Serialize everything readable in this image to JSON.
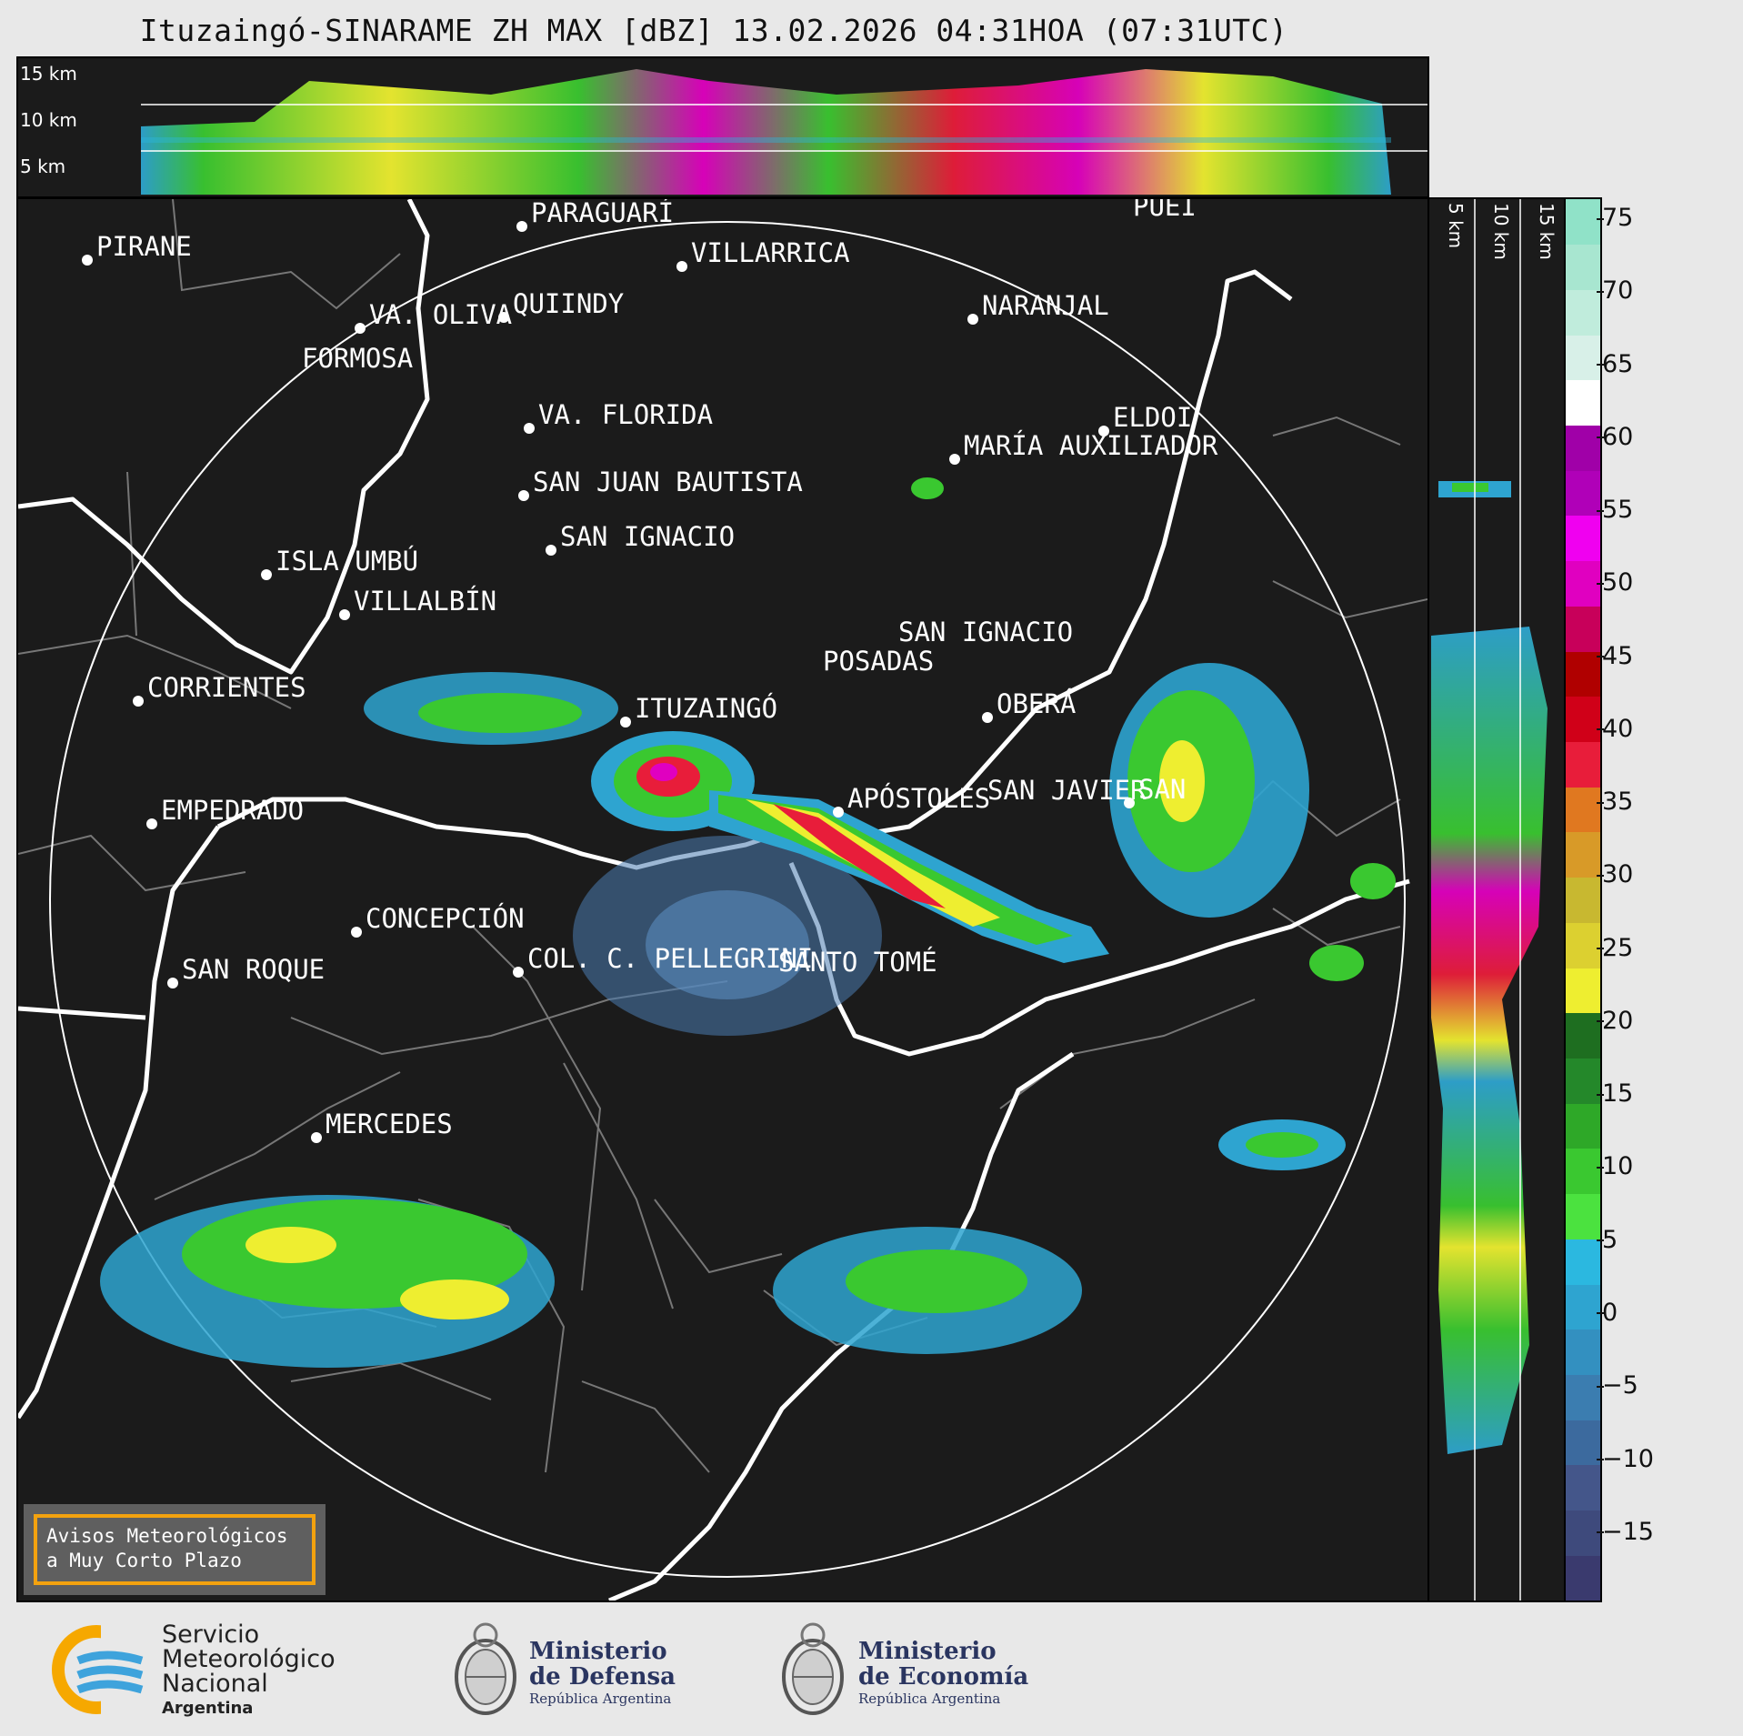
{
  "header": {
    "title": "Ituzaingó-SINARAME ZH MAX [dBZ] 13.02.2026 04:31HOA (07:31UTC)"
  },
  "cross_top": {
    "height_labels": [
      "15 km",
      "10 km",
      "5 km"
    ]
  },
  "cross_right": {
    "height_labels": [
      "5 km",
      "10 km",
      "15 km"
    ]
  },
  "map": {
    "cities": [
      {
        "name": "PIRANE"
      },
      {
        "name": "PARAGUARÍ"
      },
      {
        "name": "VILLARRICA"
      },
      {
        "name": "PUEI"
      },
      {
        "name": "VA. OLIVA"
      },
      {
        "name": "QUIINDY"
      },
      {
        "name": "NARANJAL"
      },
      {
        "name": "FORMOSA"
      },
      {
        "name": "VA. FLORIDA"
      },
      {
        "name": "ELDOI"
      },
      {
        "name": "MARÍA AUXILIADOR"
      },
      {
        "name": "SAN JUAN BAUTISTA"
      },
      {
        "name": "SAN IGNACIO"
      },
      {
        "name": "ISLA UMBÚ"
      },
      {
        "name": "VILLALBÍN"
      },
      {
        "name": "SAN IGNACIO"
      },
      {
        "name": "POSADAS"
      },
      {
        "name": "CORRIENTES"
      },
      {
        "name": "ITUZAINGÓ"
      },
      {
        "name": "OBERÁ"
      },
      {
        "name": "APÓSTOLES"
      },
      {
        "name": "SAN JAVIER"
      },
      {
        "name": "SAN"
      },
      {
        "name": "EMPEDRADO"
      },
      {
        "name": "CONCEPCIÓN"
      },
      {
        "name": "COL. C. PELLEGRINI"
      },
      {
        "name": "SANTO TOMÉ"
      },
      {
        "name": "SAN ROQUE"
      },
      {
        "name": "MERCEDES"
      }
    ]
  },
  "colorbar": {
    "unit": "dBZ",
    "ticks": [
      "75",
      "70",
      "65",
      "60",
      "55",
      "50",
      "45",
      "40",
      "35",
      "30",
      "25",
      "20",
      "15",
      "10",
      "5",
      "0",
      "−5",
      "−10",
      "−15"
    ],
    "colors": [
      "#3a3a6e",
      "#3e4a7c",
      "#44568a",
      "#3c6a9e",
      "#3b7db0",
      "#3390c0",
      "#2ea4d0",
      "#2bb8e0",
      "#4be23f",
      "#3ac830",
      "#2ea828",
      "#24882a",
      "#1e6e20",
      "#eeee30",
      "#dcd030",
      "#c8b830",
      "#d89a28",
      "#e07820",
      "#e81d3a",
      "#d00018",
      "#b00000",
      "#c8005a",
      "#e000c0",
      "#f000f0",
      "#b000b8",
      "#a000a8",
      "#ffffff",
      "#d8f0e8",
      "#c0ecdc",
      "#a8e6d0",
      "#90e2c8"
    ]
  },
  "notice": {
    "line1": "Avisos Meteorológicos",
    "line2": "a Muy Corto Plazo"
  },
  "footer": {
    "smn": {
      "line1": "Servicio",
      "line2": "Meteorológico",
      "line3": "Nacional",
      "line4": "Argentina"
    },
    "defensa": {
      "line1": "Ministerio",
      "line2": "de Defensa",
      "line3": "República Argentina"
    },
    "economia": {
      "line1": "Ministerio",
      "line2": "de Economía",
      "line3": "República Argentina"
    }
  }
}
